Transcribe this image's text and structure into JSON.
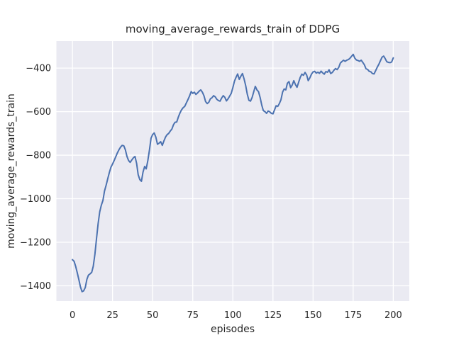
{
  "figure": {
    "background": "#ffffff"
  },
  "chart_data": {
    "type": "line",
    "title": "moving_average_rewards_train of DDPG",
    "xlabel": "episodes",
    "ylabel": "moving_average_rewards_train",
    "xlim": [
      -10,
      210
    ],
    "ylim": [
      -1470,
      -276
    ],
    "x_ticks": [
      0,
      25,
      50,
      75,
      100,
      125,
      150,
      175,
      200
    ],
    "x_tick_labels": [
      "0",
      "25",
      "50",
      "75",
      "100",
      "125",
      "150",
      "175",
      "200"
    ],
    "y_ticks": [
      -400,
      -600,
      -800,
      -1000,
      -1200,
      -1400
    ],
    "y_tick_labels": [
      "−400",
      "−600",
      "−800",
      "−1000",
      "−1200",
      "−1400"
    ],
    "grid": true,
    "legend": "none",
    "style": {
      "axes_background": "#eaeaf2",
      "grid_color": "#ffffff",
      "line_color": "#4c72b0",
      "text_color": "#262626"
    },
    "series": [
      {
        "name": "moving_average_rewards_train",
        "x": [
          0,
          1,
          2,
          3,
          4,
          5,
          6,
          7,
          8,
          9,
          10,
          11,
          12,
          13,
          14,
          15,
          16,
          17,
          18,
          19,
          20,
          21,
          22,
          23,
          24,
          25,
          26,
          27,
          28,
          29,
          30,
          31,
          32,
          33,
          34,
          35,
          36,
          37,
          38,
          39,
          40,
          41,
          42,
          43,
          44,
          45,
          46,
          47,
          48,
          49,
          50,
          51,
          52,
          53,
          54,
          55,
          56,
          57,
          58,
          59,
          60,
          61,
          62,
          63,
          64,
          65,
          66,
          67,
          68,
          69,
          70,
          71,
          72,
          73,
          74,
          75,
          76,
          77,
          78,
          79,
          80,
          81,
          82,
          83,
          84,
          85,
          86,
          87,
          88,
          89,
          90,
          91,
          92,
          93,
          94,
          95,
          96,
          97,
          98,
          99,
          100,
          101,
          102,
          103,
          104,
          105,
          106,
          107,
          108,
          109,
          110,
          111,
          112,
          113,
          114,
          115,
          116,
          117,
          118,
          119,
          120,
          121,
          122,
          123,
          124,
          125,
          126,
          127,
          128,
          129,
          130,
          131,
          132,
          133,
          134,
          135,
          136,
          137,
          138,
          139,
          140,
          141,
          142,
          143,
          144,
          145,
          146,
          147,
          148,
          149,
          150,
          151,
          152,
          153,
          154,
          155,
          156,
          157,
          158,
          159,
          160,
          161,
          162,
          163,
          164,
          165,
          166,
          167,
          168,
          169,
          170,
          171,
          172,
          173,
          174,
          175,
          176,
          177,
          178,
          179,
          180,
          181,
          182,
          183,
          184,
          185,
          186,
          187,
          188,
          189,
          190,
          191,
          192,
          193,
          194,
          195,
          196,
          197,
          198,
          199,
          200
        ],
        "y": [
          -1280,
          -1287,
          -1310,
          -1340,
          -1372,
          -1405,
          -1427,
          -1423,
          -1408,
          -1370,
          -1351,
          -1345,
          -1338,
          -1310,
          -1255,
          -1185,
          -1115,
          -1060,
          -1030,
          -1008,
          -965,
          -938,
          -908,
          -880,
          -855,
          -841,
          -825,
          -807,
          -790,
          -775,
          -763,
          -755,
          -757,
          -775,
          -806,
          -825,
          -833,
          -822,
          -812,
          -806,
          -838,
          -890,
          -912,
          -920,
          -878,
          -852,
          -863,
          -825,
          -776,
          -722,
          -705,
          -698,
          -717,
          -750,
          -745,
          -738,
          -755,
          -735,
          -717,
          -706,
          -700,
          -689,
          -680,
          -660,
          -649,
          -648,
          -625,
          -607,
          -592,
          -582,
          -576,
          -560,
          -545,
          -528,
          -508,
          -516,
          -511,
          -521,
          -514,
          -506,
          -500,
          -511,
          -527,
          -554,
          -563,
          -557,
          -541,
          -536,
          -527,
          -532,
          -543,
          -549,
          -552,
          -538,
          -527,
          -534,
          -551,
          -541,
          -529,
          -516,
          -489,
          -460,
          -442,
          -427,
          -452,
          -437,
          -425,
          -450,
          -480,
          -520,
          -548,
          -552,
          -535,
          -510,
          -484,
          -500,
          -508,
          -535,
          -570,
          -595,
          -600,
          -608,
          -597,
          -601,
          -608,
          -610,
          -592,
          -573,
          -576,
          -563,
          -545,
          -510,
          -496,
          -500,
          -470,
          -462,
          -490,
          -478,
          -458,
          -475,
          -488,
          -465,
          -443,
          -428,
          -433,
          -420,
          -432,
          -458,
          -445,
          -428,
          -418,
          -415,
          -423,
          -419,
          -424,
          -414,
          -422,
          -428,
          -416,
          -419,
          -408,
          -425,
          -420,
          -410,
          -402,
          -407,
          -397,
          -377,
          -370,
          -364,
          -369,
          -364,
          -361,
          -355,
          -346,
          -337,
          -354,
          -363,
          -365,
          -369,
          -364,
          -374,
          -385,
          -403,
          -406,
          -415,
          -417,
          -425,
          -427,
          -412,
          -396,
          -383,
          -366,
          -350,
          -345,
          -357,
          -371,
          -374,
          -375,
          -372,
          -353
        ]
      }
    ]
  }
}
